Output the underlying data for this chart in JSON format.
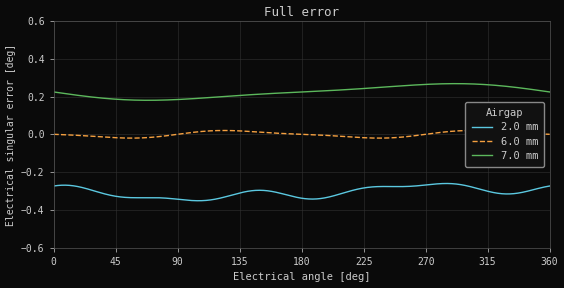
{
  "title": "Full error",
  "xlabel": "Electrical angle [deg]",
  "ylabel": "Electrical singular error [deg]",
  "xlim": [
    0,
    360
  ],
  "ylim": [
    -0.6,
    0.6
  ],
  "xticks": [
    0,
    45,
    90,
    135,
    180,
    225,
    270,
    315,
    360
  ],
  "yticks": [
    -0.6,
    -0.4,
    -0.2,
    0.0,
    0.2,
    0.4,
    0.6
  ],
  "background_color": "#0a0a0a",
  "axes_background_color": "#0a0a0a",
  "legend_title": "Airgap",
  "legend_background_color": "#111111",
  "legend_edge_color": "#888888",
  "text_color": "#cccccc",
  "grid_color": "#333333",
  "series": [
    {
      "label": "2.0 mm",
      "color": "#5bc8e0",
      "linestyle": "-",
      "linewidth": 1.0,
      "base_value": -0.305,
      "components": [
        {
          "amplitude": 0.03,
          "freq": 1,
          "phase": 2.8
        },
        {
          "amplitude": 0.02,
          "freq": 3,
          "phase": 0.5
        },
        {
          "amplitude": 0.015,
          "freq": 5,
          "phase": 1.0
        }
      ]
    },
    {
      "label": "6.0 mm",
      "color": "#f5a040",
      "linestyle": "--",
      "linewidth": 1.0,
      "base_value": 0.001,
      "components": [
        {
          "amplitude": 0.018,
          "freq": 2,
          "phase": 3.14
        },
        {
          "amplitude": 0.005,
          "freq": 4,
          "phase": 0.0
        }
      ]
    },
    {
      "label": "7.0 mm",
      "color": "#5cb85c",
      "linestyle": "-",
      "linewidth": 1.0,
      "base_value": 0.225,
      "components": [
        {
          "amplitude": 0.04,
          "freq": 1,
          "phase": 3.14
        },
        {
          "amplitude": 0.01,
          "freq": 2,
          "phase": 3.14
        }
      ]
    }
  ]
}
